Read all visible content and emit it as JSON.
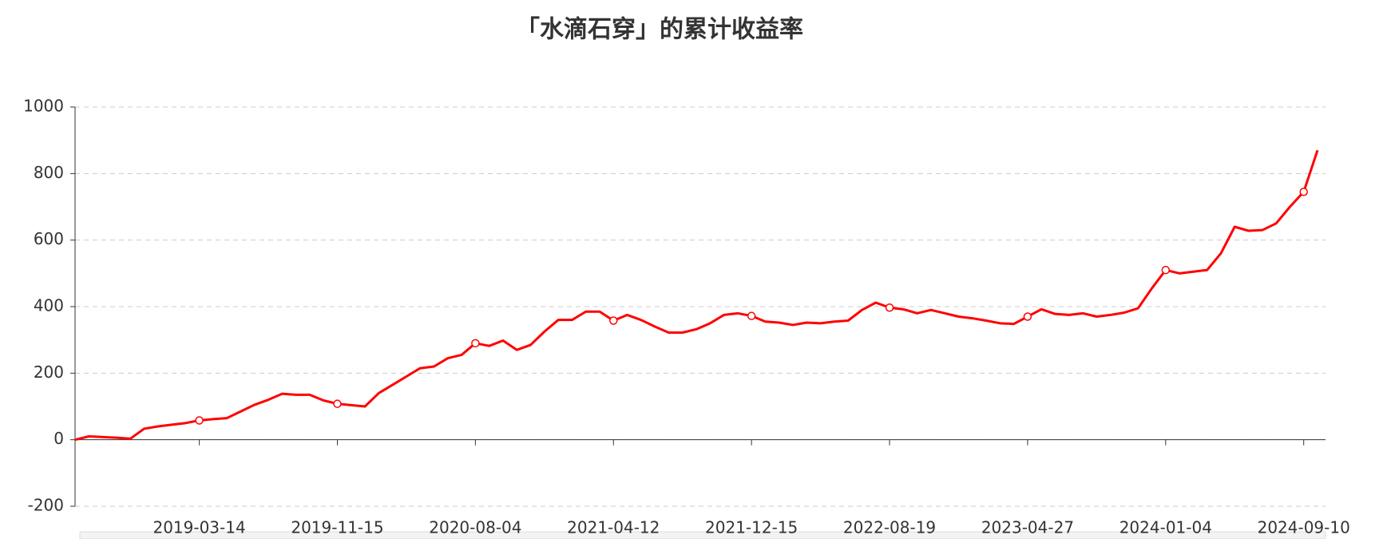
{
  "chart_data": {
    "type": "line",
    "title": "「水滴石穿」的累计收益率",
    "categories": [
      null,
      null,
      null,
      null,
      null,
      null,
      null,
      null,
      null,
      "2019-03-14",
      null,
      null,
      null,
      null,
      null,
      null,
      null,
      null,
      null,
      "2019-11-15",
      null,
      null,
      null,
      null,
      null,
      null,
      null,
      null,
      null,
      "2020-08-04",
      null,
      null,
      null,
      null,
      null,
      null,
      null,
      null,
      null,
      "2021-04-12",
      null,
      null,
      null,
      null,
      null,
      null,
      null,
      null,
      null,
      "2021-12-15",
      null,
      null,
      null,
      null,
      null,
      null,
      null,
      null,
      null,
      "2022-08-19",
      null,
      null,
      null,
      null,
      null,
      null,
      null,
      null,
      null,
      "2023-04-27",
      null,
      null,
      null,
      null,
      null,
      null,
      null,
      null,
      null,
      "2024-01-04",
      null,
      null,
      null,
      null,
      null,
      null,
      null,
      null,
      null,
      "2024-09-10",
      null
    ],
    "series": [
      {
        "color": "#ff0000",
        "values": [
          0,
          10,
          8,
          6,
          3,
          33,
          40,
          45,
          50,
          58,
          62,
          65,
          85,
          105,
          120,
          138,
          135,
          135,
          118,
          108,
          104,
          100,
          140,
          165,
          190,
          215,
          220,
          245,
          255,
          290,
          282,
          298,
          270,
          285,
          325,
          360,
          360,
          385,
          385,
          358,
          375,
          360,
          340,
          322,
          322,
          332,
          350,
          375,
          380,
          372,
          355,
          352,
          345,
          352,
          350,
          355,
          358,
          390,
          412,
          397,
          392,
          380,
          390,
          380,
          370,
          365,
          358,
          350,
          348,
          370,
          392,
          378,
          375,
          380,
          370,
          375,
          382,
          395,
          455,
          510,
          500,
          505,
          510,
          560,
          640,
          628,
          630,
          650,
          700,
          745,
          870
        ]
      }
    ],
    "ylim": [
      -200,
      1000
    ],
    "yticks": [
      -200,
      0,
      200,
      400,
      600,
      800,
      1000
    ],
    "grid": true
  }
}
